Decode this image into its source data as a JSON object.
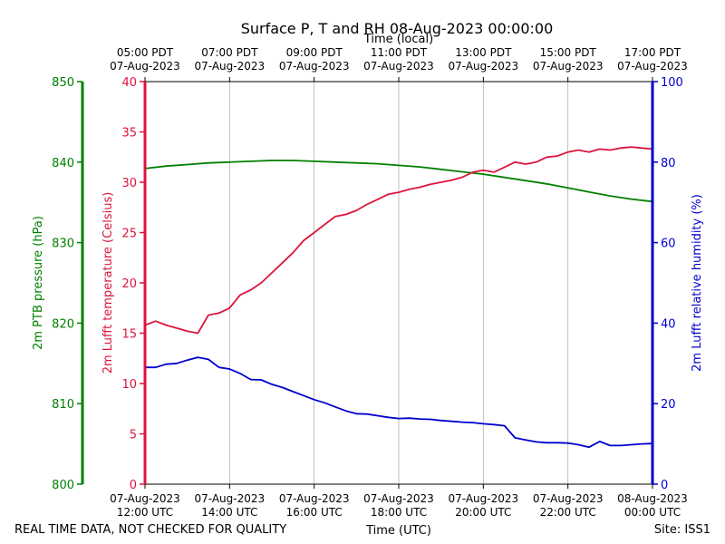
{
  "chart_data": {
    "type": "line",
    "title": "Surface P, T and RH 08-Aug-2023 00:00:00",
    "top_xlabel": "Time (local)",
    "bottom_xlabel": "Time (UTC)",
    "footer_left": "REAL TIME DATA, NOT CHECKED FOR QUALITY",
    "footer_right": "Site: ISS1",
    "x_hours_range": [
      12,
      24
    ],
    "x_bottom_ticks": [
      {
        "h": 12,
        "l1": "07-Aug-2023",
        "l2": "12:00 UTC"
      },
      {
        "h": 14,
        "l1": "07-Aug-2023",
        "l2": "14:00 UTC"
      },
      {
        "h": 16,
        "l1": "07-Aug-2023",
        "l2": "16:00 UTC"
      },
      {
        "h": 18,
        "l1": "07-Aug-2023",
        "l2": "18:00 UTC"
      },
      {
        "h": 20,
        "l1": "07-Aug-2023",
        "l2": "20:00 UTC"
      },
      {
        "h": 22,
        "l1": "07-Aug-2023",
        "l2": "22:00 UTC"
      },
      {
        "h": 24,
        "l1": "08-Aug-2023",
        "l2": "00:00 UTC"
      }
    ],
    "x_top_ticks": [
      {
        "h": 12,
        "l1": "05:00 PDT",
        "l2": "07-Aug-2023"
      },
      {
        "h": 14,
        "l1": "07:00 PDT",
        "l2": "07-Aug-2023"
      },
      {
        "h": 16,
        "l1": "09:00 PDT",
        "l2": "07-Aug-2023"
      },
      {
        "h": 18,
        "l1": "11:00 PDT",
        "l2": "07-Aug-2023"
      },
      {
        "h": 20,
        "l1": "13:00 PDT",
        "l2": "07-Aug-2023"
      },
      {
        "h": 22,
        "l1": "15:00 PDT",
        "l2": "07-Aug-2023"
      },
      {
        "h": 24,
        "l1": "17:00 PDT",
        "l2": "07-Aug-2023"
      }
    ],
    "grid": "vertical",
    "axes": {
      "pressure": {
        "label": "2m PTB pressure (hPa)",
        "ylim": [
          800,
          850
        ],
        "ticks": [
          800,
          810,
          820,
          830,
          840,
          850
        ],
        "color": "#008000"
      },
      "temperature": {
        "label": "2m Lufft temperature (Celsius)",
        "ylim": [
          0,
          40
        ],
        "ticks": [
          0,
          5,
          10,
          15,
          20,
          25,
          30,
          35,
          40
        ],
        "color": "#dc143c"
      },
      "humidity": {
        "label": "2m Lufft relative humidity (%)",
        "ylim": [
          0,
          100
        ],
        "ticks": [
          0,
          20,
          40,
          60,
          80,
          100
        ],
        "color": "#0000cd"
      }
    },
    "series": [
      {
        "axis": "pressure",
        "color": "#008000",
        "x": [
          12.0,
          12.5,
          13.0,
          13.5,
          14.0,
          14.5,
          15.0,
          15.5,
          16.0,
          16.5,
          17.0,
          17.5,
          18.0,
          18.5,
          19.0,
          19.5,
          20.0,
          20.5,
          21.0,
          21.5,
          22.0,
          22.5,
          23.0,
          23.5,
          24.0
        ],
        "values": [
          839.2,
          839.5,
          839.7,
          839.9,
          840.0,
          840.1,
          840.2,
          840.2,
          840.1,
          840.0,
          839.9,
          839.8,
          839.6,
          839.4,
          839.1,
          838.8,
          838.5,
          838.1,
          837.7,
          837.3,
          836.8,
          836.3,
          835.8,
          835.4,
          835.1
        ]
      },
      {
        "axis": "temperature",
        "color": "#dc143c",
        "x": [
          12.0,
          12.25,
          12.5,
          12.75,
          13.0,
          13.25,
          13.5,
          13.75,
          14.0,
          14.25,
          14.5,
          14.75,
          15.0,
          15.25,
          15.5,
          15.75,
          16.0,
          16.25,
          16.5,
          16.75,
          17.0,
          17.25,
          17.5,
          17.75,
          18.0,
          18.25,
          18.5,
          18.75,
          19.0,
          19.25,
          19.5,
          19.75,
          20.0,
          20.25,
          20.5,
          20.75,
          21.0,
          21.25,
          21.5,
          21.75,
          22.0,
          22.25,
          22.5,
          22.75,
          23.0,
          23.25,
          23.5,
          23.75,
          24.0
        ],
        "values": [
          15.8,
          16.2,
          15.8,
          15.5,
          15.2,
          15.0,
          16.8,
          17.0,
          17.5,
          18.8,
          19.3,
          20.0,
          21.0,
          22.0,
          23.0,
          24.2,
          25.0,
          25.8,
          26.6,
          26.8,
          27.2,
          27.8,
          28.3,
          28.8,
          29.0,
          29.3,
          29.5,
          29.8,
          30.0,
          30.2,
          30.5,
          31.0,
          31.2,
          31.0,
          31.5,
          32.0,
          31.8,
          32.0,
          32.5,
          32.6,
          33.0,
          33.2,
          33.0,
          33.3,
          33.2,
          33.4,
          33.5,
          33.4,
          33.3
        ]
      },
      {
        "axis": "humidity",
        "color": "#0000cd",
        "x": [
          12.0,
          12.25,
          12.5,
          12.75,
          13.0,
          13.25,
          13.5,
          13.75,
          14.0,
          14.25,
          14.5,
          14.75,
          15.0,
          15.25,
          15.5,
          15.75,
          16.0,
          16.25,
          16.5,
          16.75,
          17.0,
          17.25,
          17.5,
          17.75,
          18.0,
          18.25,
          18.5,
          18.75,
          19.0,
          19.25,
          19.5,
          19.75,
          20.0,
          20.25,
          20.5,
          20.75,
          21.0,
          21.25,
          21.5,
          21.75,
          22.0,
          22.25,
          22.5,
          22.75,
          23.0,
          23.25,
          23.5,
          23.75,
          24.0
        ],
        "values": [
          29.0,
          29.0,
          29.8,
          30.0,
          30.8,
          31.5,
          31.0,
          29.0,
          28.6,
          27.5,
          26.0,
          25.9,
          24.8,
          24.0,
          23.0,
          22.0,
          21.0,
          20.2,
          19.2,
          18.2,
          17.5,
          17.4,
          17.0,
          16.6,
          16.3,
          16.4,
          16.2,
          16.1,
          15.8,
          15.6,
          15.4,
          15.3,
          15.0,
          14.8,
          14.5,
          11.5,
          11.0,
          10.5,
          10.3,
          10.3,
          10.2,
          9.8,
          9.2,
          10.6,
          9.6,
          9.6,
          9.8,
          10.0,
          10.1
        ]
      }
    ]
  }
}
